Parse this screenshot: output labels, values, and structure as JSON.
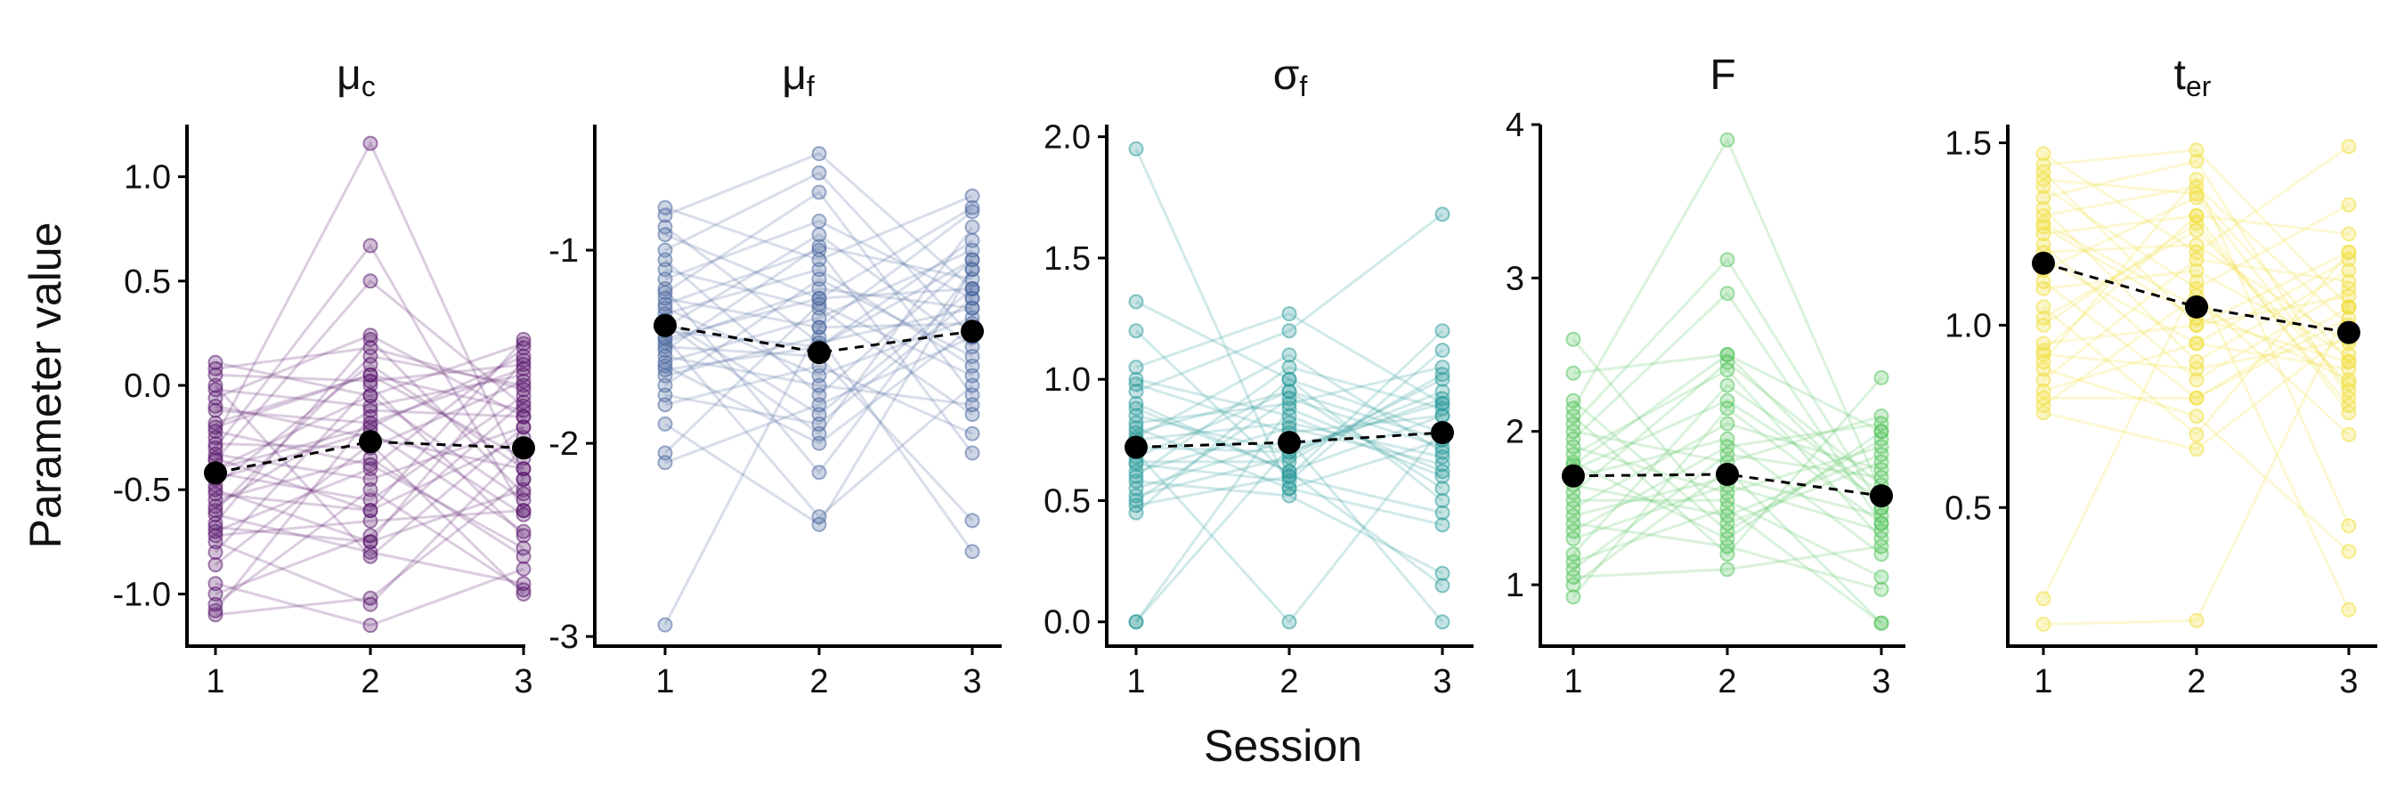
{
  "chart_data": {
    "type": "line",
    "ylabel": "Parameter value",
    "xlabel": "Session",
    "x": [
      1,
      2,
      3
    ],
    "panels": [
      {
        "title_main": "μ",
        "title_sub": "c",
        "color": "#5b1a6e",
        "ylim": [
          -1.25,
          1.25
        ],
        "yticks": [
          1.0,
          0.5,
          0.0,
          -0.5,
          -1.0
        ],
        "ytick_labels": [
          "1.0",
          "0.5",
          "0.0",
          "-0.5",
          "-1.0"
        ],
        "means": [
          -0.42,
          -0.27,
          -0.3
        ],
        "subjects": [
          [
            0.11,
            -0.05,
            0.2
          ],
          [
            0.08,
            0.18,
            -0.02
          ],
          [
            0.05,
            0.02,
            0.1
          ],
          [
            -0.02,
            -0.1,
            0.05
          ],
          [
            -0.06,
            0.24,
            -0.15
          ],
          [
            -0.12,
            -0.18,
            0.08
          ],
          [
            -0.2,
            0.05,
            -0.35
          ],
          [
            -0.25,
            1.16,
            -0.45
          ],
          [
            -0.28,
            -0.3,
            0.02
          ],
          [
            -0.3,
            0.67,
            -0.6
          ],
          [
            -0.33,
            -0.45,
            -0.2
          ],
          [
            -0.36,
            0.5,
            -0.1
          ],
          [
            -0.4,
            -0.05,
            -0.55
          ],
          [
            -0.42,
            -0.55,
            -0.05
          ],
          [
            -0.45,
            -0.22,
            -0.7
          ],
          [
            -0.48,
            0.1,
            -0.4
          ],
          [
            -0.5,
            -0.75,
            0.12
          ],
          [
            -0.52,
            -0.6,
            -0.25
          ],
          [
            -0.55,
            -0.35,
            -0.82
          ],
          [
            -0.58,
            -0.12,
            -0.15
          ],
          [
            -0.62,
            -0.8,
            -0.95
          ],
          [
            -0.66,
            0.22,
            -0.52
          ],
          [
            -0.7,
            -0.4,
            0.18
          ],
          [
            -0.72,
            -0.65,
            -0.6
          ],
          [
            -0.75,
            -1.05,
            -0.3
          ],
          [
            -0.8,
            0.0,
            -0.72
          ],
          [
            -0.86,
            -0.28,
            -1.0
          ],
          [
            -0.95,
            -1.15,
            -0.88
          ],
          [
            -1.0,
            -0.72,
            -0.08
          ],
          [
            -1.05,
            -0.5,
            -0.98
          ],
          [
            -1.1,
            -1.02,
            -0.45
          ],
          [
            -1.08,
            -0.15,
            -0.62
          ],
          [
            -0.35,
            -0.6,
            0.22
          ],
          [
            0.0,
            -0.82,
            -0.2
          ],
          [
            -0.6,
            0.14,
            0.0
          ],
          [
            -0.22,
            -0.38,
            -0.78
          ],
          [
            -0.4,
            -0.2,
            0.14
          ],
          [
            -0.18,
            0.05,
            -0.12
          ],
          [
            -0.68,
            -0.75,
            -0.5
          ],
          [
            -0.1,
            -0.25,
            -0.4
          ]
        ]
      },
      {
        "title_main": "μ",
        "title_sub": "f",
        "color": "#4f6aa0",
        "ylim": [
          -3.05,
          -0.35
        ],
        "yticks": [
          -1,
          -2,
          -3
        ],
        "ytick_labels": [
          "-1",
          "-2",
          "-3"
        ],
        "means": [
          -1.39,
          -1.53,
          -1.42
        ],
        "subjects": [
          [
            -0.78,
            -1.05,
            -0.72
          ],
          [
            -0.82,
            -0.5,
            -1.2
          ],
          [
            -0.92,
            -1.25,
            -0.78
          ],
          [
            -1.0,
            -0.6,
            -1.45
          ],
          [
            -1.05,
            -1.75,
            -1.05
          ],
          [
            -1.1,
            -1.3,
            -1.85
          ],
          [
            -1.15,
            -0.85,
            -1.25
          ],
          [
            -1.2,
            -2.15,
            -1.1
          ],
          [
            -1.25,
            -1.4,
            -0.8
          ],
          [
            -1.28,
            -1.0,
            -2.05
          ],
          [
            -1.3,
            -1.65,
            -1.35
          ],
          [
            -1.33,
            -1.1,
            -1.6
          ],
          [
            -1.36,
            -1.85,
            -1.2
          ],
          [
            -1.4,
            -0.92,
            -1.5
          ],
          [
            -1.42,
            -1.5,
            -0.95
          ],
          [
            -1.45,
            -2.38,
            -1.7
          ],
          [
            -1.48,
            -1.2,
            -1.3
          ],
          [
            -1.5,
            -1.55,
            -2.4
          ],
          [
            -1.52,
            -0.98,
            -1.15
          ],
          [
            -1.55,
            -1.7,
            -1.8
          ],
          [
            -1.58,
            -1.35,
            -1.0
          ],
          [
            -1.6,
            -2.0,
            -1.4
          ],
          [
            -1.65,
            -1.45,
            -2.56
          ],
          [
            -1.7,
            -1.15,
            -1.55
          ],
          [
            -1.75,
            -1.9,
            -1.25
          ],
          [
            -1.8,
            -1.6,
            -1.95
          ],
          [
            -1.9,
            -2.42,
            -1.1
          ],
          [
            -2.05,
            -1.28,
            -1.65
          ],
          [
            -2.1,
            -1.8,
            -1.45
          ],
          [
            -2.94,
            -1.4,
            -1.38
          ],
          [
            -1.22,
            -0.7,
            -1.75
          ],
          [
            -1.38,
            -1.95,
            -0.88
          ],
          [
            -0.88,
            -1.48,
            -1.3
          ],
          [
            -1.46,
            -1.25,
            -1.2
          ],
          [
            -1.62,
            -1.5,
            -1.05
          ]
        ]
      },
      {
        "title_main": "σ",
        "title_sub": "f",
        "color": "#2e9c9c",
        "ylim": [
          -0.1,
          2.05
        ],
        "yticks": [
          2.0,
          1.5,
          1.0,
          0.5,
          0.0
        ],
        "ytick_labels": [
          "2.0",
          "1.5",
          "1.0",
          "0.5",
          "0.0"
        ],
        "means": [
          0.72,
          0.74,
          0.78
        ],
        "subjects": [
          [
            1.95,
            0.55,
            0.75
          ],
          [
            1.32,
            1.0,
            0.5
          ],
          [
            1.2,
            0.6,
            1.2
          ],
          [
            1.05,
            1.27,
            0.9
          ],
          [
            1.0,
            0.85,
            0.6
          ],
          [
            0.95,
            1.2,
            1.68
          ],
          [
            0.88,
            0.62,
            0.85
          ],
          [
            0.82,
            0.9,
            1.05
          ],
          [
            0.8,
            0.55,
            0.4
          ],
          [
            0.76,
            1.1,
            0.7
          ],
          [
            0.72,
            0.7,
            0.95
          ],
          [
            0.7,
            0.0,
            0.8
          ],
          [
            0.68,
            0.95,
            0.55
          ],
          [
            0.65,
            0.58,
            1.12
          ],
          [
            0.62,
            0.8,
            0.65
          ],
          [
            0.6,
            1.05,
            0.88
          ],
          [
            0.58,
            0.52,
            0.2
          ],
          [
            0.55,
            0.75,
            0.0
          ],
          [
            0.52,
            0.68,
            1.0
          ],
          [
            0.5,
            0.92,
            0.72
          ],
          [
            0.48,
            0.6,
            0.45
          ],
          [
            0.45,
            1.0,
            0.78
          ],
          [
            0.0,
            0.72,
            0.9
          ],
          [
            0.0,
            0.88,
            0.62
          ],
          [
            0.9,
            0.62,
            0.15
          ],
          [
            0.98,
            0.78,
            0.85
          ],
          [
            0.85,
            0.7,
            0.92
          ],
          [
            0.75,
            0.82,
            0.68
          ],
          [
            0.66,
            0.66,
            1.02
          ],
          [
            0.78,
            0.95,
            0.75
          ]
        ]
      },
      {
        "title_main": "F",
        "title_sub": "",
        "color": "#55c45e",
        "ylim": [
          0.6,
          4.0
        ],
        "yticks": [
          4,
          3,
          2,
          1
        ],
        "ytick_labels": [
          "4",
          "3",
          "2",
          "1"
        ],
        "means": [
          1.71,
          1.72,
          1.58
        ],
        "subjects": [
          [
            2.6,
            1.4,
            1.8
          ],
          [
            2.38,
            2.5,
            2.0
          ],
          [
            2.15,
            3.9,
            1.6
          ],
          [
            2.1,
            1.2,
            2.35
          ],
          [
            2.05,
            3.12,
            1.5
          ],
          [
            2.0,
            1.8,
            2.1
          ],
          [
            1.95,
            2.9,
            1.4
          ],
          [
            1.9,
            1.6,
            1.9
          ],
          [
            1.85,
            2.4,
            1.3
          ],
          [
            1.8,
            1.3,
            2.0
          ],
          [
            1.75,
            2.2,
            1.55
          ],
          [
            1.7,
            1.95,
            1.2
          ],
          [
            1.65,
            1.45,
            1.85
          ],
          [
            1.6,
            2.45,
            1.65
          ],
          [
            1.55,
            1.55,
            1.05
          ],
          [
            1.5,
            2.05,
            1.75
          ],
          [
            1.45,
            1.7,
            1.45
          ],
          [
            1.4,
            1.25,
            0.97
          ],
          [
            1.35,
            1.9,
            2.05
          ],
          [
            1.3,
            1.65,
            1.35
          ],
          [
            1.2,
            2.3,
            1.6
          ],
          [
            1.15,
            1.5,
            0.75
          ],
          [
            1.1,
            1.85,
            1.7
          ],
          [
            1.05,
            1.1,
            1.25
          ],
          [
            1.0,
            1.75,
            0.75
          ],
          [
            0.92,
            2.15,
            1.4
          ],
          [
            2.2,
            1.35,
            1.95
          ],
          [
            1.78,
            2.5,
            1.5
          ]
        ]
      },
      {
        "title_main": "t",
        "title_sub": "er",
        "color": "#f1de3a",
        "ylim": [
          0.12,
          1.55
        ],
        "yticks": [
          1.5,
          1.0,
          0.5
        ],
        "ytick_labels": [
          "1.5",
          "1.0",
          "0.5"
        ],
        "means": [
          1.17,
          1.05,
          0.98
        ],
        "subjects": [
          [
            1.47,
            1.2,
            1.49
          ],
          [
            1.44,
            1.48,
            1.05
          ],
          [
            1.42,
            1.0,
            1.2
          ],
          [
            1.4,
            1.36,
            0.9
          ],
          [
            1.38,
            1.1,
            1.33
          ],
          [
            1.35,
            1.45,
            0.8
          ],
          [
            1.32,
            0.9,
            1.15
          ],
          [
            1.3,
            1.38,
            1.0
          ],
          [
            1.28,
            1.05,
            0.85
          ],
          [
            1.25,
            1.3,
            1.25
          ],
          [
            1.22,
            0.85,
            1.1
          ],
          [
            1.2,
            1.22,
            0.95
          ],
          [
            1.18,
            0.95,
            1.18
          ],
          [
            1.15,
            1.35,
            0.82
          ],
          [
            1.12,
            0.8,
            1.05
          ],
          [
            1.1,
            1.15,
            0.92
          ],
          [
            1.05,
            0.7,
            1.2
          ],
          [
            1.0,
            1.28,
            0.78
          ],
          [
            0.95,
            1.0,
            1.08
          ],
          [
            0.92,
            0.88,
            0.96
          ],
          [
            0.9,
            1.4,
            0.45
          ],
          [
            0.88,
            0.75,
            0.38
          ],
          [
            0.85,
            1.18,
            1.12
          ],
          [
            0.82,
            0.95,
            0.88
          ],
          [
            0.8,
            0.8,
            1.02
          ],
          [
            0.78,
            1.08,
            0.7
          ],
          [
            0.76,
            0.66,
            0.98
          ],
          [
            0.25,
            1.12,
            0.22
          ],
          [
            0.18,
            0.19,
            1.05
          ],
          [
            1.27,
            1.02,
            0.9
          ],
          [
            1.02,
            1.26,
            0.84
          ],
          [
            0.93,
            1.3,
            0.76
          ]
        ]
      }
    ]
  }
}
